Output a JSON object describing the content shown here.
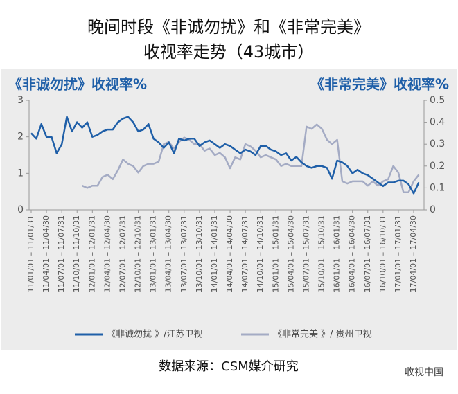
{
  "chart_data": {
    "type": "line",
    "title": "晚间时段《非诚勿扰》和《非常完美》",
    "subtitle": "收视率走势（43城市）",
    "y_label": "《非诚勿扰》收视率%",
    "y2_label": "《非常完美》收视率%",
    "source": "数据来源：CSM媒介研究",
    "watermark": "收视中国",
    "categories": [
      "11/01/01 – 11/01/31",
      null,
      null,
      "11/04/01 – 11/04/30",
      null,
      null,
      "11/07/01 – 11/07/31",
      null,
      null,
      "11/10/01 – 11/10/31",
      null,
      null,
      "12/01/01 – 12/01/31",
      null,
      null,
      "12/04/01 – 12/04/30",
      null,
      null,
      "12/07/01 – 12/07/31",
      null,
      null,
      "12/10/01 – 12/10/31",
      null,
      null,
      "13/01/01 – 13/01/31",
      null,
      null,
      "13/04/01 – 13/04/30",
      null,
      null,
      "13/07/01 – 13/07/31",
      null,
      null,
      "13/10/01 – 13/10/31",
      null,
      null,
      "14/01/01 – 14/01/31",
      null,
      null,
      "14/04/01 – 14/04/30",
      null,
      null,
      "14/07/01 – 14/07/31",
      null,
      null,
      "14/10/01 – 14/10/31",
      null,
      null,
      "15/01/01 – 15/01/31",
      null,
      null,
      "15/04/01 – 15/04/30",
      null,
      null,
      "15/07/01 – 15/07/31",
      null,
      null,
      "15/10/01 – 15/10/31",
      null,
      null,
      "16/01/01 – 16/01/31",
      null,
      null,
      "16/04/01 – 16/04/30",
      null,
      null,
      "16/07/01 – 16/07/31",
      null,
      null,
      "16/10/01 – 16/10/31",
      null,
      null,
      "17/01/01 – 17/01/31",
      null,
      null,
      "17/04/01 – 17/04/30",
      null
    ],
    "series": [
      {
        "name": "《非诚勿扰 》/江苏卫视",
        "color": "#1f5fa8",
        "values": [
          2.1,
          1.95,
          2.35,
          2.0,
          2.0,
          1.55,
          1.8,
          2.55,
          2.15,
          2.4,
          2.25,
          2.4,
          2.0,
          2.05,
          2.15,
          2.2,
          2.2,
          2.4,
          2.5,
          2.55,
          2.4,
          2.15,
          2.2,
          2.35,
          1.95,
          1.85,
          1.7,
          1.85,
          1.55,
          1.95,
          1.9,
          1.95,
          1.95,
          1.75,
          1.85,
          1.9,
          1.8,
          1.7,
          1.8,
          1.75,
          1.65,
          1.55,
          1.65,
          1.6,
          1.5,
          1.75,
          1.75,
          1.65,
          1.6,
          1.5,
          1.55,
          1.35,
          1.45,
          1.3,
          1.2,
          1.15,
          1.2,
          1.2,
          1.15,
          0.85,
          1.35,
          1.3,
          1.2,
          1.0,
          1.1,
          1.0,
          0.95,
          0.85,
          0.75,
          0.65,
          0.75,
          0.75,
          0.8,
          0.8,
          0.7,
          0.45,
          0.75
        ]
      },
      {
        "name": "《非常完美 》/ 贵州卫视",
        "color": "#a4abc4",
        "axis": "y2",
        "values": [
          null,
          null,
          null,
          null,
          null,
          null,
          null,
          null,
          null,
          null,
          0.11,
          0.1,
          0.11,
          0.11,
          0.15,
          0.16,
          0.14,
          0.18,
          0.23,
          0.21,
          0.2,
          0.17,
          0.2,
          0.21,
          0.21,
          0.22,
          0.3,
          0.31,
          0.28,
          0.31,
          0.33,
          0.32,
          0.3,
          0.3,
          0.27,
          0.28,
          0.25,
          0.26,
          0.24,
          0.19,
          0.24,
          0.23,
          0.3,
          0.29,
          0.27,
          0.24,
          0.25,
          0.24,
          0.23,
          0.2,
          0.21,
          0.2,
          0.2,
          0.2,
          0.38,
          0.37,
          0.39,
          0.37,
          0.32,
          0.3,
          0.32,
          0.13,
          0.12,
          0.13,
          0.13,
          0.13,
          0.11,
          0.13,
          0.11,
          0.13,
          0.14,
          0.2,
          0.17,
          0.08,
          0.08,
          0.13,
          0.16
        ]
      }
    ],
    "ylim": [
      0,
      3
    ],
    "yticks": [
      0,
      1,
      2,
      3
    ],
    "y2lim": [
      0,
      0.5
    ],
    "y2ticks": [
      0,
      0.1,
      0.2,
      0.3,
      0.4,
      0.5
    ]
  }
}
